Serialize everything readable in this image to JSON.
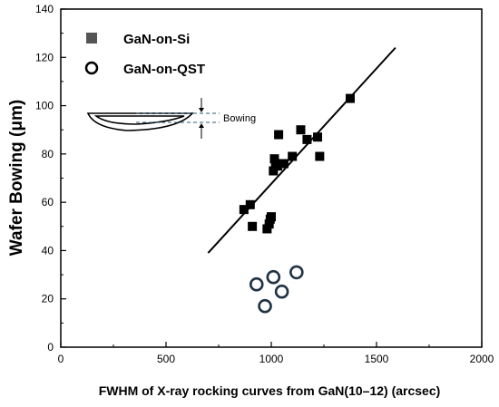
{
  "chart_data": {
    "type": "scatter",
    "title": "",
    "xlabel": "FWHM of X-ray rocking curves from GaN(10–12) (arcsec)",
    "ylabel": "Wafer Bowing (μm)",
    "xlim": [
      0,
      2000
    ],
    "ylim": [
      0,
      140
    ],
    "x_ticks": [
      0,
      500,
      1000,
      1500,
      2000
    ],
    "y_ticks": [
      0,
      20,
      40,
      60,
      80,
      100,
      120,
      140
    ],
    "grid": false,
    "legend_position": "top-left",
    "series": [
      {
        "name": "GaN-on-Si",
        "marker": "filled-square",
        "color": "#000000",
        "points": [
          [
            870,
            57
          ],
          [
            900,
            59
          ],
          [
            910,
            50
          ],
          [
            980,
            49
          ],
          [
            990,
            51
          ],
          [
            995,
            53
          ],
          [
            1000,
            54
          ],
          [
            1010,
            73
          ],
          [
            1015,
            78
          ],
          [
            1020,
            76
          ],
          [
            1030,
            75
          ],
          [
            1035,
            88
          ],
          [
            1060,
            76
          ],
          [
            1100,
            79
          ],
          [
            1140,
            90
          ],
          [
            1170,
            86
          ],
          [
            1220,
            87
          ],
          [
            1230,
            79
          ],
          [
            1375,
            103
          ]
        ]
      },
      {
        "name": "GaN-on-QST",
        "marker": "open-circle",
        "color": "#1f3344",
        "points": [
          [
            930,
            26
          ],
          [
            970,
            17
          ],
          [
            1010,
            29
          ],
          [
            1050,
            23
          ],
          [
            1120,
            31
          ]
        ]
      }
    ],
    "fit_line": {
      "x": [
        700,
        1590
      ],
      "y": [
        39,
        124
      ]
    },
    "annotation": {
      "label": "Bowing"
    }
  }
}
